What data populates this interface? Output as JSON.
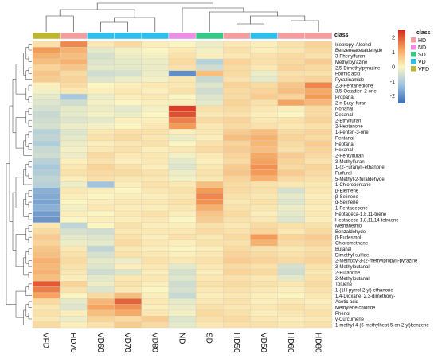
{
  "chart_data": {
    "type": "heatmap",
    "columns": [
      "VFD",
      "HD70",
      "VD60",
      "VD70",
      "VD80",
      "ND",
      "SD",
      "HD50",
      "VD50",
      "HD60",
      "HD80"
    ],
    "column_class": [
      "VFD",
      "HD",
      "VD",
      "VD",
      "VD",
      "ND",
      "SD",
      "HD",
      "VD",
      "HD",
      "HD"
    ],
    "rows": [
      "Isopropyl Alcohol",
      "Benzeneacetaldehyde",
      "3-Phenylfuran",
      "Methylpyrazine",
      "2,5-Dimethylpyrazine",
      "Formic acid",
      "Pyrazinamide",
      "2,3-Pentanedione",
      "3,5-Octadien-2-one",
      "Propanal",
      "2-n-Butyl furan",
      "Nonanal",
      "Decanal",
      "2-Ethylfuran",
      "2-Heptanone",
      "1-Penten-3-one",
      "Pentanal",
      "Heptanal",
      "Hexanal",
      "2-Pentylfuran",
      "3-Methylfuran",
      "1-(2-Furanyl)-ethanone",
      "Furfural",
      "5-Methyl-2-furaldehyde",
      "1-Chloropentane",
      "β-Elemene",
      "β-Selinene",
      "α-Selinene",
      "1-Pentadecene",
      "Heptadeca-1,8,11-triene",
      "Heptadeca-1,8,11,14-tetraene",
      "Methanethiol",
      "Benzaldehyde",
      "β-Eudesmol",
      "Chloromethane",
      "Butanal",
      "Dimethyl sulfide",
      "2-Methoxy-3-(2-methylpropyl)-pyrazine",
      "3-Methylbutanal",
      "2-Butanone",
      "2-Methylbutanal",
      "Toluene",
      "1-(1H-pyrrol-2-yl)-ethanone",
      "1,4-Dioxane, 2,3-dimethoxy-",
      "Acetic acid",
      "Methylene chloride",
      "Phenol",
      "γ-Curcumene",
      "1-methyl-4-(6-methylhept-5-en-2-yl)benzene"
    ],
    "values": [
      [
        0.3,
        1.5,
        0.2,
        0.4,
        0.1,
        0.0,
        -0.2,
        0.2,
        0.1,
        0.3,
        0.5
      ],
      [
        1.3,
        1.0,
        -0.3,
        -0.1,
        0.0,
        0.2,
        -0.1,
        0.3,
        0.1,
        0.2,
        0.4
      ],
      [
        1.0,
        0.8,
        -0.5,
        -0.2,
        -0.1,
        0.3,
        0.1,
        0.2,
        0.3,
        0.4,
        0.3
      ],
      [
        0.8,
        1.0,
        -0.4,
        -0.3,
        -0.2,
        0.4,
        -0.9,
        0.5,
        0.3,
        0.4,
        0.6
      ],
      [
        0.5,
        0.7,
        -0.3,
        -0.3,
        -0.2,
        0.3,
        -0.6,
        0.4,
        0.2,
        0.5,
        0.4
      ],
      [
        0.7,
        0.4,
        -0.6,
        -0.5,
        -0.2,
        -2.0,
        0.8,
        0.4,
        -0.2,
        0.3,
        0.3
      ],
      [
        0.6,
        0.5,
        -0.4,
        -0.2,
        -0.1,
        0.2,
        -0.7,
        0.3,
        -0.3,
        0.4,
        0.5
      ],
      [
        0.1,
        0.4,
        0.0,
        0.1,
        0.2,
        0.2,
        -0.4,
        0.5,
        0.4,
        0.7,
        1.5
      ],
      [
        -0.1,
        0.2,
        0.1,
        0.2,
        0.1,
        0.3,
        -0.6,
        0.4,
        0.5,
        0.8,
        1.1
      ],
      [
        -0.3,
        -1.1,
        -0.2,
        0.1,
        0.2,
        0.0,
        -0.4,
        0.4,
        0.6,
        0.5,
        1.3
      ],
      [
        -0.4,
        -0.6,
        -0.1,
        0.0,
        0.1,
        0.1,
        -0.3,
        0.5,
        0.3,
        1.2,
        0.9
      ],
      [
        -0.5,
        -0.3,
        -0.2,
        -0.3,
        -0.1,
        2.3,
        0.3,
        0.4,
        0.2,
        0.1,
        0.4
      ],
      [
        -0.7,
        -0.3,
        -0.1,
        -0.2,
        0.0,
        2.1,
        0.2,
        0.3,
        0.1,
        0.0,
        0.4
      ],
      [
        -0.6,
        -0.4,
        -0.3,
        0.1,
        0.1,
        1.6,
        0.4,
        0.5,
        0.2,
        0.3,
        0.5
      ],
      [
        -0.5,
        -0.2,
        -0.1,
        0.0,
        0.2,
        1.3,
        0.2,
        0.4,
        0.3,
        0.2,
        0.3
      ],
      [
        -0.9,
        -0.4,
        0.2,
        0.3,
        0.3,
        0.1,
        0.2,
        0.6,
        0.8,
        0.4,
        0.5
      ],
      [
        -0.8,
        -0.3,
        0.3,
        0.4,
        0.2,
        -0.2,
        0.1,
        0.8,
        1.0,
        0.5,
        0.4
      ],
      [
        -1.0,
        -0.2,
        0.1,
        0.2,
        0.3,
        0.0,
        0.3,
        0.5,
        0.9,
        0.4,
        0.6
      ],
      [
        -0.7,
        -0.1,
        0.2,
        0.3,
        0.1,
        0.2,
        0.4,
        0.6,
        0.8,
        0.3,
        0.5
      ],
      [
        -0.6,
        -0.2,
        0.4,
        0.2,
        0.2,
        -0.1,
        0.2,
        0.5,
        1.1,
        0.6,
        0.4
      ],
      [
        -0.9,
        0.1,
        0.3,
        0.1,
        0.2,
        -0.3,
        0.1,
        0.4,
        1.2,
        0.5,
        0.3
      ],
      [
        -1.1,
        0.2,
        0.5,
        0.3,
        0.1,
        -0.4,
        0.2,
        0.6,
        1.4,
        0.4,
        0.5
      ],
      [
        -1.0,
        0.3,
        0.4,
        0.4,
        0.3,
        -0.2,
        0.3,
        0.7,
        1.3,
        0.6,
        0.4
      ],
      [
        -0.8,
        0.1,
        0.3,
        0.2,
        0.2,
        -0.1,
        0.2,
        0.5,
        1.0,
        0.4,
        0.3
      ],
      [
        -0.9,
        -0.2,
        -1.2,
        0.1,
        0.3,
        0.2,
        0.8,
        0.4,
        0.3,
        0.2,
        0.2
      ],
      [
        -1.5,
        0.2,
        0.1,
        0.0,
        0.2,
        0.3,
        1.3,
        0.4,
        0.3,
        -0.5,
        0.2
      ],
      [
        -1.6,
        0.1,
        0.0,
        0.1,
        0.1,
        0.2,
        1.5,
        0.3,
        0.2,
        -0.3,
        0.1
      ],
      [
        -1.7,
        0.0,
        0.1,
        0.2,
        0.2,
        0.3,
        1.4,
        0.2,
        0.3,
        -0.4,
        0.2
      ],
      [
        -1.5,
        -0.1,
        0.2,
        0.1,
        0.1,
        0.2,
        1.0,
        0.3,
        0.2,
        -0.2,
        0.1
      ],
      [
        -1.8,
        0.1,
        0.0,
        0.2,
        0.3,
        0.1,
        0.7,
        0.4,
        0.1,
        -0.3,
        0.2
      ],
      [
        -1.9,
        0.0,
        0.1,
        0.1,
        0.2,
        0.0,
        0.6,
        0.3,
        0.2,
        -0.4,
        0.1
      ],
      [
        0.2,
        -0.8,
        0.0,
        0.3,
        0.1,
        0.1,
        0.3,
        0.2,
        0.4,
        0.3,
        0.3
      ],
      [
        0.4,
        -0.5,
        -0.6,
        0.2,
        0.2,
        0.2,
        0.4,
        0.3,
        0.5,
        0.2,
        0.4
      ],
      [
        0.6,
        -0.3,
        -0.4,
        0.3,
        0.1,
        0.3,
        0.2,
        0.4,
        1.3,
        0.5,
        0.6
      ],
      [
        0.5,
        -0.2,
        -0.3,
        0.4,
        0.2,
        0.1,
        0.3,
        0.3,
        1.0,
        0.4,
        0.5
      ],
      [
        0.7,
        0.2,
        -0.8,
        0.2,
        0.1,
        0.0,
        0.1,
        0.4,
        0.3,
        0.2,
        0.3
      ],
      [
        0.8,
        0.3,
        -0.5,
        0.3,
        0.2,
        0.1,
        0.2,
        0.5,
        0.4,
        0.3,
        0.4
      ],
      [
        1.0,
        0.4,
        -0.3,
        -0.2,
        0.3,
        0.2,
        0.3,
        0.6,
        0.5,
        0.4,
        0.5
      ],
      [
        0.9,
        0.3,
        -0.4,
        0.1,
        0.2,
        -0.3,
        0.2,
        0.4,
        0.3,
        -0.5,
        0.3
      ],
      [
        1.0,
        0.2,
        -0.6,
        -0.4,
        0.1,
        -0.5,
        0.1,
        0.5,
        0.4,
        -0.6,
        0.2
      ],
      [
        0.8,
        0.1,
        -0.3,
        0.2,
        0.2,
        -0.4,
        0.2,
        0.3,
        0.2,
        -0.3,
        0.3
      ],
      [
        2.0,
        0.5,
        -0.2,
        0.3,
        0.1,
        -0.6,
        0.3,
        0.4,
        0.3,
        0.2,
        0.4
      ],
      [
        1.6,
        0.3,
        -0.4,
        0.2,
        0.0,
        -0.5,
        0.2,
        0.3,
        0.2,
        0.1,
        0.3
      ],
      [
        1.2,
        0.0,
        0.4,
        0.8,
        0.1,
        -0.7,
        0.1,
        0.2,
        0.1,
        0.0,
        0.2
      ],
      [
        0.4,
        -0.3,
        0.9,
        1.9,
        0.2,
        -0.3,
        0.2,
        0.3,
        0.1,
        0.2,
        0.1
      ],
      [
        0.2,
        -0.4,
        1.2,
        1.4,
        0.1,
        -0.2,
        0.3,
        0.2,
        0.2,
        0.3,
        0.2
      ],
      [
        0.3,
        0.1,
        0.8,
        1.1,
        0.2,
        -0.1,
        0.4,
        0.3,
        0.1,
        0.2,
        0.3
      ],
      [
        0.2,
        -0.2,
        0.5,
        0.4,
        0.6,
        -0.4,
        0.3,
        0.4,
        0.2,
        0.1,
        0.2
      ],
      [
        0.4,
        0.1,
        0.3,
        0.6,
        0.4,
        -0.3,
        0.2,
        0.3,
        0.3,
        0.2,
        0.3
      ]
    ],
    "color_scale": {
      "range": [
        -2.5,
        2.5
      ],
      "ticks": [
        2,
        1,
        0,
        -1,
        -2
      ],
      "colors": [
        "#3b6ab5",
        "#9dc3e0",
        "#fbf5c2",
        "#f5a05a",
        "#d52a1e"
      ]
    },
    "class_legend": {
      "title": "class",
      "items": [
        {
          "label": "HD",
          "color": "#f29ea0"
        },
        {
          "label": "ND",
          "color": "#ea8ee6"
        },
        {
          "label": "SD",
          "color": "#35c985"
        },
        {
          "label": "VD",
          "color": "#2ec0ea"
        },
        {
          "label": "VFD",
          "color": "#bdb72f"
        }
      ]
    },
    "class_bar_label": "class"
  }
}
